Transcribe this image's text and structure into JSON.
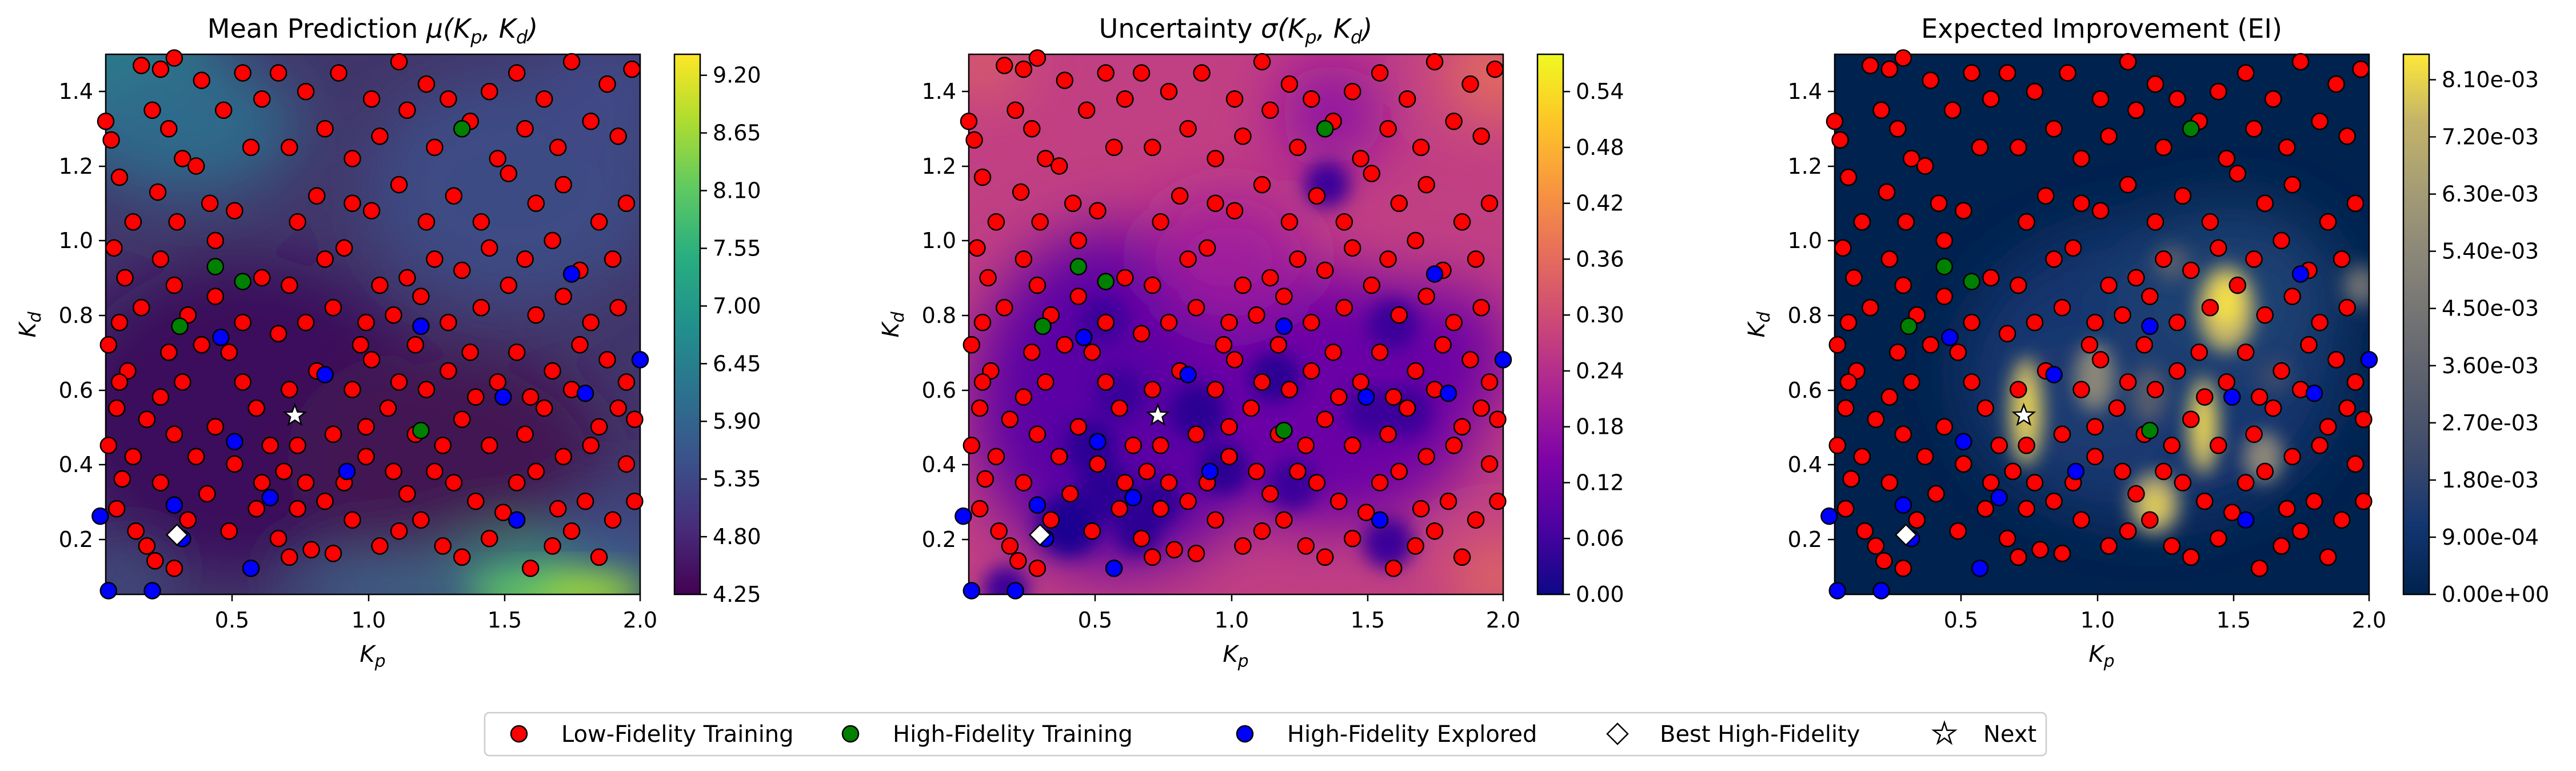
{
  "chart_data": [
    {
      "type": "heatmap",
      "title": "Mean Prediction μ(K_p, K_d)",
      "title_main": "Mean Prediction ",
      "title_math": "μ(K",
      "title_sub1": "p",
      "title_mid": ", K",
      "title_sub2": "d",
      "title_end": ")",
      "xlabel": "K_p",
      "ylabel": "K_d",
      "xlim": [
        0.05,
        2.0
      ],
      "ylim": [
        0.05,
        1.5
      ],
      "xticks": [
        "0.5",
        "1.0",
        "1.5",
        "2.0"
      ],
      "yticks": [
        "0.2",
        "0.4",
        "0.6",
        "0.8",
        "1.0",
        "1.2",
        "1.4"
      ],
      "colormap": "viridis",
      "colorbar_ticks": [
        "4.25",
        "4.80",
        "5.35",
        "5.90",
        "6.45",
        "7.00",
        "7.55",
        "8.10",
        "8.65",
        "9.20"
      ],
      "colorbar_range": [
        4.25,
        9.4
      ]
    },
    {
      "type": "heatmap",
      "title": "Uncertainty σ(K_p, K_d)",
      "title_main": "Uncertainty ",
      "title_math": "σ(K",
      "title_sub1": "p",
      "title_mid": ", K",
      "title_sub2": "d",
      "title_end": ")",
      "xlabel": "K_p",
      "ylabel": "K_d",
      "xlim": [
        0.05,
        2.0
      ],
      "ylim": [
        0.05,
        1.5
      ],
      "xticks": [
        "0.5",
        "1.0",
        "1.5",
        "2.0"
      ],
      "yticks": [
        "0.2",
        "0.4",
        "0.6",
        "0.8",
        "1.0",
        "1.2",
        "1.4"
      ],
      "colormap": "plasma",
      "colorbar_ticks": [
        "0.00",
        "0.06",
        "0.12",
        "0.18",
        "0.24",
        "0.30",
        "0.36",
        "0.42",
        "0.48",
        "0.54"
      ],
      "colorbar_range": [
        0.0,
        0.58
      ]
    },
    {
      "type": "heatmap",
      "title": "Expected Improvement (EI)",
      "title_main": "Expected Improvement (EI)",
      "title_math": "",
      "title_sub1": "",
      "title_mid": "",
      "title_sub2": "",
      "title_end": "",
      "xlabel": "K_p",
      "ylabel": "K_d",
      "xlim": [
        0.05,
        2.0
      ],
      "ylim": [
        0.05,
        1.5
      ],
      "xticks": [
        "0.5",
        "1.0",
        "1.5",
        "2.0"
      ],
      "yticks": [
        "0.2",
        "0.4",
        "0.6",
        "0.8",
        "1.0",
        "1.2",
        "1.4"
      ],
      "colormap": "cividis",
      "colorbar_ticks": [
        "0.00e+00",
        "9.00e-04",
        "1.80e-03",
        "2.70e-03",
        "3.60e-03",
        "4.50e-03",
        "5.40e-03",
        "6.30e-03",
        "7.20e-03",
        "8.10e-03"
      ],
      "colorbar_range": [
        0.0,
        0.0085
      ]
    }
  ],
  "points": {
    "low_fidelity": [
      [
        0.05,
        1.32
      ],
      [
        0.07,
        1.27
      ],
      [
        0.1,
        1.17
      ],
      [
        0.15,
        1.05
      ],
      [
        0.08,
        0.98
      ],
      [
        0.12,
        0.9
      ],
      [
        0.1,
        0.78
      ],
      [
        0.06,
        0.72
      ],
      [
        0.13,
        0.65
      ],
      [
        0.09,
        0.55
      ],
      [
        0.06,
        0.45
      ],
      [
        0.11,
        0.36
      ],
      [
        0.09,
        0.28
      ],
      [
        0.16,
        0.22
      ],
      [
        0.2,
        0.18
      ],
      [
        0.23,
        0.14
      ],
      [
        0.3,
        0.12
      ],
      [
        0.18,
        1.47
      ],
      [
        0.25,
        1.46
      ],
      [
        0.3,
        1.49
      ],
      [
        0.22,
        1.35
      ],
      [
        0.28,
        1.3
      ],
      [
        0.33,
        1.22
      ],
      [
        0.24,
        1.13
      ],
      [
        0.38,
        1.2
      ],
      [
        0.43,
        1.1
      ],
      [
        0.31,
        1.05
      ],
      [
        0.45,
        1.0
      ],
      [
        0.52,
        1.08
      ],
      [
        0.58,
        1.25
      ],
      [
        0.48,
        1.35
      ],
      [
        0.55,
        1.45
      ],
      [
        0.62,
        1.38
      ],
      [
        0.4,
        1.43
      ],
      [
        0.25,
        0.95
      ],
      [
        0.3,
        0.88
      ],
      [
        0.18,
        0.82
      ],
      [
        0.35,
        0.8
      ],
      [
        0.45,
        0.85
      ],
      [
        0.55,
        0.78
      ],
      [
        0.62,
        0.9
      ],
      [
        0.5,
        0.7
      ],
      [
        0.4,
        0.72
      ],
      [
        0.28,
        0.7
      ],
      [
        0.33,
        0.62
      ],
      [
        0.25,
        0.58
      ],
      [
        0.2,
        0.52
      ],
      [
        0.3,
        0.48
      ],
      [
        0.38,
        0.42
      ],
      [
        0.45,
        0.5
      ],
      [
        0.55,
        0.62
      ],
      [
        0.6,
        0.55
      ],
      [
        0.65,
        0.45
      ],
      [
        0.52,
        0.4
      ],
      [
        0.42,
        0.32
      ],
      [
        0.35,
        0.25
      ],
      [
        0.5,
        0.22
      ],
      [
        0.6,
        0.28
      ],
      [
        0.58,
        0.12
      ],
      [
        0.72,
        0.15
      ],
      [
        0.8,
        0.17
      ],
      [
        0.88,
        0.16
      ],
      [
        0.68,
        0.2
      ],
      [
        0.75,
        0.28
      ],
      [
        0.85,
        0.3
      ],
      [
        0.95,
        0.25
      ],
      [
        1.05,
        0.18
      ],
      [
        1.12,
        0.22
      ],
      [
        1.2,
        0.25
      ],
      [
        1.28,
        0.18
      ],
      [
        1.35,
        0.15
      ],
      [
        1.45,
        0.2
      ],
      [
        1.5,
        0.27
      ],
      [
        1.6,
        0.12
      ],
      [
        1.68,
        0.18
      ],
      [
        1.75,
        0.22
      ],
      [
        1.85,
        0.15
      ],
      [
        1.9,
        0.25
      ],
      [
        1.98,
        0.3
      ],
      [
        1.8,
        0.3
      ],
      [
        0.7,
        0.38
      ],
      [
        0.78,
        0.35
      ],
      [
        0.92,
        0.35
      ],
      [
        1.0,
        0.42
      ],
      [
        1.1,
        0.38
      ],
      [
        1.15,
        0.32
      ],
      [
        1.25,
        0.38
      ],
      [
        1.32,
        0.35
      ],
      [
        1.4,
        0.3
      ],
      [
        1.55,
        0.35
      ],
      [
        1.62,
        0.38
      ],
      [
        1.72,
        0.42
      ],
      [
        1.82,
        0.45
      ],
      [
        1.95,
        0.4
      ],
      [
        0.75,
        0.45
      ],
      [
        0.88,
        0.48
      ],
      [
        1.0,
        0.5
      ],
      [
        1.08,
        0.55
      ],
      [
        1.18,
        0.48
      ],
      [
        1.28,
        0.45
      ],
      [
        1.45,
        0.45
      ],
      [
        1.58,
        0.48
      ],
      [
        1.65,
        0.55
      ],
      [
        1.75,
        0.6
      ],
      [
        1.85,
        0.5
      ],
      [
        1.98,
        0.52
      ],
      [
        0.72,
        0.6
      ],
      [
        0.82,
        0.65
      ],
      [
        0.95,
        0.6
      ],
      [
        1.02,
        0.68
      ],
      [
        1.12,
        0.62
      ],
      [
        1.22,
        0.6
      ],
      [
        1.3,
        0.65
      ],
      [
        1.38,
        0.7
      ],
      [
        1.48,
        0.62
      ],
      [
        1.55,
        0.7
      ],
      [
        1.68,
        0.65
      ],
      [
        1.78,
        0.72
      ],
      [
        1.88,
        0.68
      ],
      [
        1.95,
        0.62
      ],
      [
        0.68,
        0.75
      ],
      [
        0.78,
        0.78
      ],
      [
        0.88,
        0.82
      ],
      [
        1.0,
        0.78
      ],
      [
        1.1,
        0.8
      ],
      [
        1.2,
        0.85
      ],
      [
        1.3,
        0.78
      ],
      [
        1.42,
        0.82
      ],
      [
        1.52,
        0.88
      ],
      [
        1.62,
        0.8
      ],
      [
        1.72,
        0.85
      ],
      [
        1.82,
        0.78
      ],
      [
        1.92,
        0.82
      ],
      [
        0.72,
        0.88
      ],
      [
        0.85,
        0.95
      ],
      [
        0.92,
        0.98
      ],
      [
        1.05,
        0.88
      ],
      [
        1.15,
        0.9
      ],
      [
        1.25,
        0.95
      ],
      [
        1.35,
        0.92
      ],
      [
        1.45,
        0.98
      ],
      [
        1.58,
        0.95
      ],
      [
        1.68,
        1.0
      ],
      [
        1.78,
        0.92
      ],
      [
        1.9,
        0.95
      ],
      [
        0.75,
        1.05
      ],
      [
        0.82,
        1.12
      ],
      [
        0.95,
        1.1
      ],
      [
        1.02,
        1.08
      ],
      [
        1.12,
        1.15
      ],
      [
        1.22,
        1.05
      ],
      [
        1.32,
        1.12
      ],
      [
        1.42,
        1.05
      ],
      [
        1.52,
        1.18
      ],
      [
        1.62,
        1.1
      ],
      [
        1.72,
        1.15
      ],
      [
        1.85,
        1.05
      ],
      [
        1.95,
        1.1
      ],
      [
        0.72,
        1.25
      ],
      [
        0.85,
        1.3
      ],
      [
        0.95,
        1.22
      ],
      [
        1.05,
        1.28
      ],
      [
        1.15,
        1.35
      ],
      [
        1.25,
        1.25
      ],
      [
        1.38,
        1.32
      ],
      [
        1.48,
        1.22
      ],
      [
        1.58,
        1.3
      ],
      [
        1.7,
        1.25
      ],
      [
        1.82,
        1.32
      ],
      [
        1.92,
        1.28
      ],
      [
        0.78,
        1.4
      ],
      [
        0.9,
        1.45
      ],
      [
        1.02,
        1.38
      ],
      [
        1.12,
        1.48
      ],
      [
        1.22,
        1.42
      ],
      [
        1.3,
        1.38
      ],
      [
        1.45,
        1.4
      ],
      [
        1.55,
        1.45
      ],
      [
        1.65,
        1.38
      ],
      [
        1.75,
        1.48
      ],
      [
        1.88,
        1.42
      ],
      [
        1.97,
        1.46
      ],
      [
        0.68,
        1.45
      ],
      [
        1.4,
        0.58
      ],
      [
        1.6,
        0.58
      ],
      [
        1.35,
        0.52
      ],
      [
        0.98,
        0.72
      ],
      [
        1.18,
        0.72
      ],
      [
        0.62,
        0.35
      ],
      [
        1.7,
        0.28
      ],
      [
        1.92,
        0.55
      ],
      [
        0.25,
        0.35
      ],
      [
        0.15,
        0.42
      ],
      [
        0.1,
        0.62
      ]
    ],
    "high_fidelity_training": [
      [
        0.45,
        0.93
      ],
      [
        0.32,
        0.77
      ],
      [
        0.55,
        0.89
      ],
      [
        1.35,
        1.3
      ],
      [
        1.2,
        0.49
      ]
    ],
    "high_fidelity_explored": [
      [
        0.47,
        0.74
      ],
      [
        0.3,
        0.29
      ],
      [
        0.33,
        0.2
      ],
      [
        0.58,
        0.12
      ],
      [
        0.52,
        0.46
      ],
      [
        0.65,
        0.31
      ],
      [
        0.85,
        0.64
      ],
      [
        0.93,
        0.38
      ],
      [
        1.2,
        0.77
      ],
      [
        1.5,
        0.58
      ],
      [
        1.55,
        0.25
      ],
      [
        1.75,
        0.91
      ],
      [
        1.8,
        0.59
      ],
      [
        0.22,
        0.06
      ],
      [
        0.03,
        0.26
      ],
      [
        2.0,
        0.68
      ],
      [
        0.06,
        0.06
      ]
    ],
    "best_high_fidelity": [
      0.31,
      0.21
    ],
    "next": [
      0.74,
      0.53
    ]
  },
  "legend": {
    "low_fidelity": "Low-Fidelity Training",
    "high_fidelity_training": "High-Fidelity Training",
    "high_fidelity_explored": "High-Fidelity Explored",
    "best_high_fidelity": "Best High-Fidelity",
    "next": "Next"
  },
  "colors": {
    "low_fidelity": "#ff0000",
    "high_fidelity_training": "#008000",
    "high_fidelity_explored": "#0000ff",
    "marker_edge": "#000000"
  }
}
